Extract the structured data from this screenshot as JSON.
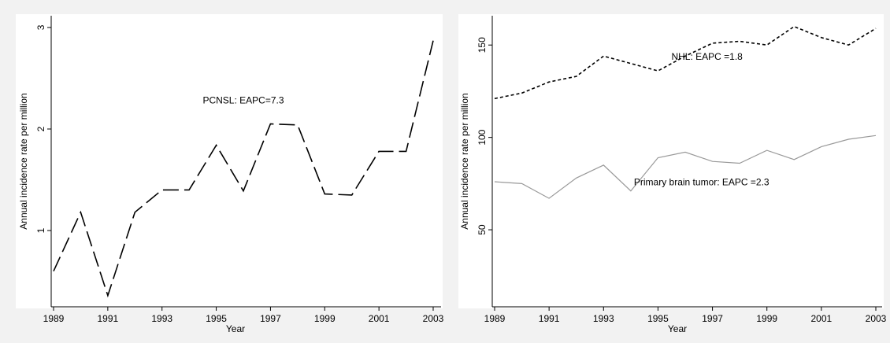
{
  "chart_data": [
    {
      "type": "line",
      "title": "",
      "xlabel": "Year",
      "ylabel": "Annual incidence rate per million",
      "xlim": [
        1989,
        2003
      ],
      "ylim": [
        0.28,
        3.1
      ],
      "x_ticks": [
        1989,
        1991,
        1993,
        1995,
        1997,
        1999,
        2001,
        2003
      ],
      "x_tick_labels": [
        "1989",
        "1991",
        "1993",
        "1995",
        "1997",
        "1999",
        "2001",
        "2003"
      ],
      "y_ticks": [
        1,
        2,
        3
      ],
      "y_tick_labels": [
        "1",
        "2",
        "3"
      ],
      "grid": false,
      "series": [
        {
          "name": "",
          "style": "long-dash",
          "color": "#000000",
          "x": [
            1989,
            1990,
            1991,
            1992,
            1993,
            1994,
            1995,
            1996,
            1997,
            1998,
            1999,
            2000,
            2001,
            2002,
            2003
          ],
          "values": [
            0.6,
            1.18,
            0.36,
            1.18,
            1.4,
            1.4,
            1.84,
            1.39,
            2.05,
            2.04,
            1.36,
            1.35,
            1.78,
            1.78,
            2.87
          ]
        }
      ],
      "annotations": [
        {
          "text": "PCNSL: EAPC=7.3",
          "x": 1996,
          "y": 2.25
        }
      ]
    },
    {
      "type": "line",
      "title": "",
      "xlabel": "Year",
      "ylabel": "Annual incidence rate per million",
      "xlim": [
        1989,
        2003
      ],
      "ylim": [
        10,
        165
      ],
      "x_ticks": [
        1989,
        1991,
        1993,
        1995,
        1997,
        1999,
        2001,
        2003
      ],
      "x_tick_labels": [
        "1989",
        "1991",
        "1993",
        "1995",
        "1997",
        "1999",
        "2001",
        "2003"
      ],
      "y_ticks": [
        50,
        100,
        150
      ],
      "y_tick_labels": [
        "50",
        "100",
        "150"
      ],
      "grid": false,
      "series": [
        {
          "name": "",
          "style": "short-dash",
          "color": "#000000",
          "x": [
            1989,
            1990,
            1991,
            1992,
            1993,
            1994,
            1995,
            1996,
            1997,
            1998,
            1999,
            2000,
            2001,
            2002,
            2003
          ],
          "values": [
            121,
            124,
            130,
            133,
            144,
            140,
            136,
            144,
            151,
            152,
            150,
            160,
            154,
            150,
            159
          ]
        },
        {
          "name": "",
          "style": "solid",
          "color": "#999999",
          "x": [
            1989,
            1990,
            1991,
            1992,
            1993,
            1994,
            1995,
            1996,
            1997,
            1998,
            1999,
            2000,
            2001,
            2002,
            2003
          ],
          "values": [
            76,
            75,
            67,
            78,
            85,
            71,
            89,
            92,
            87,
            86,
            93,
            88,
            95,
            99,
            101
          ]
        }
      ],
      "annotations": [
        {
          "text": "NHL: EAPC =1.8",
          "x": 1996.8,
          "y": 142
        },
        {
          "text": "Primary brain tumor: EAPC =2.3",
          "x": 1996.6,
          "y": 74
        }
      ]
    }
  ]
}
